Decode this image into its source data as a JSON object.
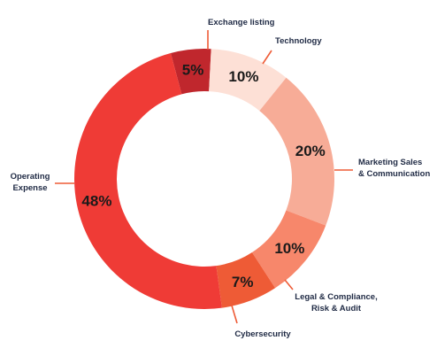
{
  "chart_data": {
    "type": "pie",
    "style": "donut",
    "slices": [
      {
        "label": "Exchange listing",
        "value": 5,
        "display": "5%",
        "color": "#c0272d"
      },
      {
        "label": "Technology",
        "value": 10,
        "display": "10%",
        "color": "#fde0d6"
      },
      {
        "label": "Marketing Sales\n& Communication",
        "value": 20,
        "display": "20%",
        "color": "#f7ac97"
      },
      {
        "label": "Legal & Compliance,\nRisk & Audit",
        "value": 10,
        "display": "10%",
        "color": "#f7876b"
      },
      {
        "label": "Cybersecurity",
        "value": 7,
        "display": "7%",
        "color": "#ee5b36"
      },
      {
        "label": "Operating\nExpense",
        "value": 48,
        "display": "48%",
        "color": "#ef3b36"
      }
    ],
    "leader_color": "#ee5b36"
  }
}
